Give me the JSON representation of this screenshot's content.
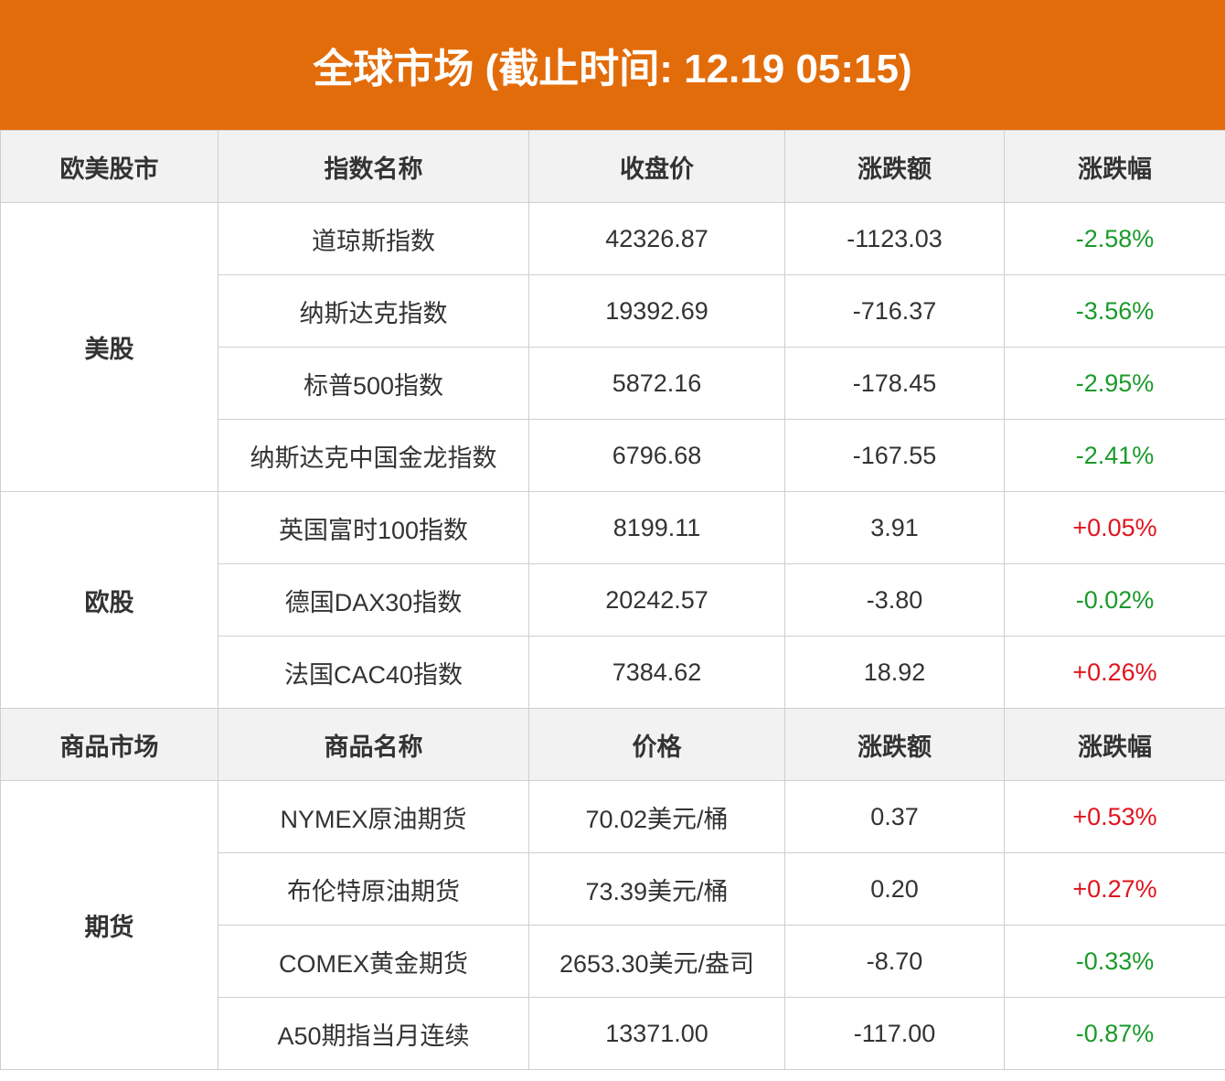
{
  "title": "全球市场 (截止时间: 12.19 05:15)",
  "sections": [
    {
      "header": [
        "欧美股市",
        "指数名称",
        "收盘价",
        "涨跌额",
        "涨跌幅"
      ],
      "groups": [
        {
          "name": "美股",
          "rows": [
            [
              "道琼斯指数",
              "42326.87",
              "-1123.03",
              "-2.58%"
            ],
            [
              "纳斯达克指数",
              "19392.69",
              "-716.37",
              "-3.56%"
            ],
            [
              "标普500指数",
              "5872.16",
              "-178.45",
              "-2.95%"
            ],
            [
              "纳斯达克中国金龙指数",
              "6796.68",
              "-167.55",
              "-2.41%"
            ]
          ]
        },
        {
          "name": "欧股",
          "rows": [
            [
              "英国富时100指数",
              "8199.11",
              "3.91",
              "+0.05%"
            ],
            [
              "德国DAX30指数",
              "20242.57",
              "-3.80",
              "-0.02%"
            ],
            [
              "法国CAC40指数",
              "7384.62",
              "18.92",
              "+0.26%"
            ]
          ]
        }
      ]
    },
    {
      "header": [
        "商品市场",
        "商品名称",
        "价格",
        "涨跌额",
        "涨跌幅"
      ],
      "groups": [
        {
          "name": "期货",
          "rows": [
            [
              "NYMEX原油期货",
              "70.02美元/桶",
              "0.37",
              "+0.53%"
            ],
            [
              "布伦特原油期货",
              "73.39美元/桶",
              "0.20",
              "+0.27%"
            ],
            [
              "COMEX黄金期货",
              "2653.30美元/盎司",
              "-8.70",
              "-0.33%"
            ],
            [
              "A50期指当月连续",
              "13371.00",
              "-117.00",
              "-0.87%"
            ]
          ]
        }
      ]
    }
  ]
}
